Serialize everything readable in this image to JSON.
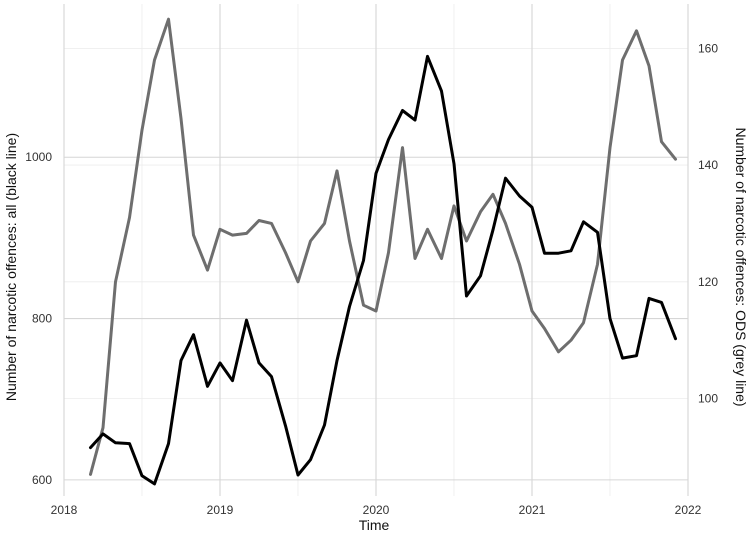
{
  "chart_data": {
    "type": "line",
    "xlabel": "Time",
    "ylabel_left": "Number of narcotic offences: all (black line)",
    "ylabel_right": "Number of narcotic offences: ODS (grey line)",
    "x_ticks": [
      "2018",
      "2019",
      "2020",
      "2021",
      "2022"
    ],
    "y_left_ticks": [
      "600",
      "800",
      "1000"
    ],
    "y_right_ticks": [
      "100",
      "120",
      "140",
      "160"
    ],
    "xlim": [
      2018.0,
      2022.0
    ],
    "ylim_left": [
      580,
      1190
    ],
    "ylim_right": [
      83.3,
      167.6
    ],
    "grid": true,
    "series": [
      {
        "axis": "left",
        "color": "#000000",
        "x": [
          2018.17,
          2018.25,
          2018.33,
          2018.42,
          2018.5,
          2018.58,
          2018.67,
          2018.75,
          2018.83,
          2018.92,
          2019.0,
          2019.08,
          2019.17,
          2019.25,
          2019.33,
          2019.42,
          2019.5,
          2019.58,
          2019.67,
          2019.75,
          2019.83,
          2019.92,
          2020.0,
          2020.08,
          2020.17,
          2020.25,
          2020.33,
          2020.42,
          2020.5,
          2020.58,
          2020.67,
          2020.75,
          2020.83,
          2020.92,
          2021.0,
          2021.08,
          2021.17,
          2021.25,
          2021.33,
          2021.42,
          2021.5,
          2021.58,
          2021.67,
          2021.75,
          2021.83,
          2021.92
        ],
        "values": [
          640,
          657,
          646,
          645,
          605,
          595,
          645,
          748,
          780,
          716,
          745,
          723,
          798,
          745,
          728,
          667,
          606,
          625,
          668,
          748,
          815,
          872,
          980,
          1022,
          1058,
          1046,
          1125,
          1082,
          992,
          828,
          853,
          910,
          974,
          952,
          938,
          881,
          881,
          884,
          920,
          907,
          800,
          751,
          754,
          825,
          820,
          775
        ]
      },
      {
        "axis": "right",
        "color": "#6e6e6e",
        "x": [
          2018.17,
          2018.25,
          2018.33,
          2018.42,
          2018.5,
          2018.58,
          2018.67,
          2018.75,
          2018.83,
          2018.92,
          2019.0,
          2019.08,
          2019.17,
          2019.25,
          2019.33,
          2019.42,
          2019.5,
          2019.58,
          2019.67,
          2019.75,
          2019.83,
          2019.92,
          2020.0,
          2020.08,
          2020.17,
          2020.25,
          2020.33,
          2020.42,
          2020.5,
          2020.58,
          2020.67,
          2020.75,
          2020.83,
          2020.92,
          2021.0,
          2021.08,
          2021.17,
          2021.25,
          2021.33,
          2021.42,
          2021.5,
          2021.58,
          2021.67,
          2021.75,
          2021.83,
          2021.92
        ],
        "values": [
          87,
          95,
          120,
          131,
          146,
          158,
          165,
          148,
          128,
          122,
          129,
          128,
          128.3,
          130.5,
          130,
          125,
          120,
          127,
          130,
          139,
          127,
          116,
          115,
          125,
          143,
          124,
          129,
          124,
          133,
          127,
          132,
          135,
          130,
          123,
          115,
          112,
          108,
          110,
          113,
          123,
          143,
          158,
          163,
          157,
          144,
          141
        ]
      }
    ]
  }
}
